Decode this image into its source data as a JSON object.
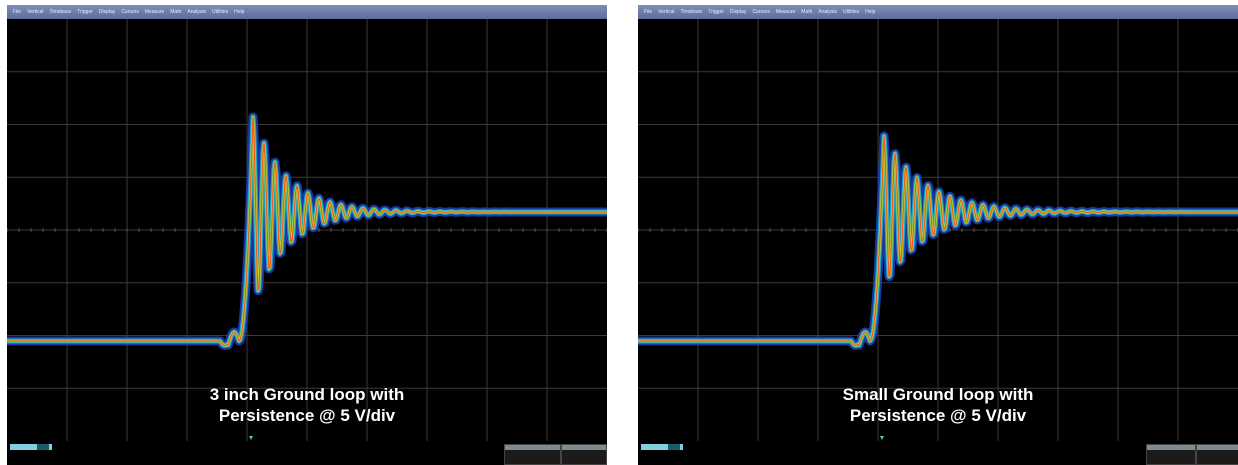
{
  "menu": [
    "File",
    "Vertical",
    "Timebase",
    "Trigger",
    "Display",
    "Cursors",
    "Measure",
    "Math",
    "Analysis",
    "Utilities",
    "Help"
  ],
  "colors": {
    "persist_outer": "#1f3fbf",
    "persist_mid": "#19b4c8",
    "persist_inner": "#c8d62a",
    "persist_core": "#f05a1e",
    "grid": "#3a3a3a",
    "menubar": "#6f7eae"
  },
  "panels": [
    {
      "caption_line1": "3 inch Ground loop with",
      "caption_line2": "Persistence @ 5 V/div",
      "ringing_amplitude": 1.0,
      "ringing_decay": 0.9
    },
    {
      "caption_line1": "Small Ground loop with",
      "caption_line2": "Persistence @ 5 V/div",
      "ringing_amplitude": 0.8,
      "ringing_decay": 1.1
    }
  ]
}
